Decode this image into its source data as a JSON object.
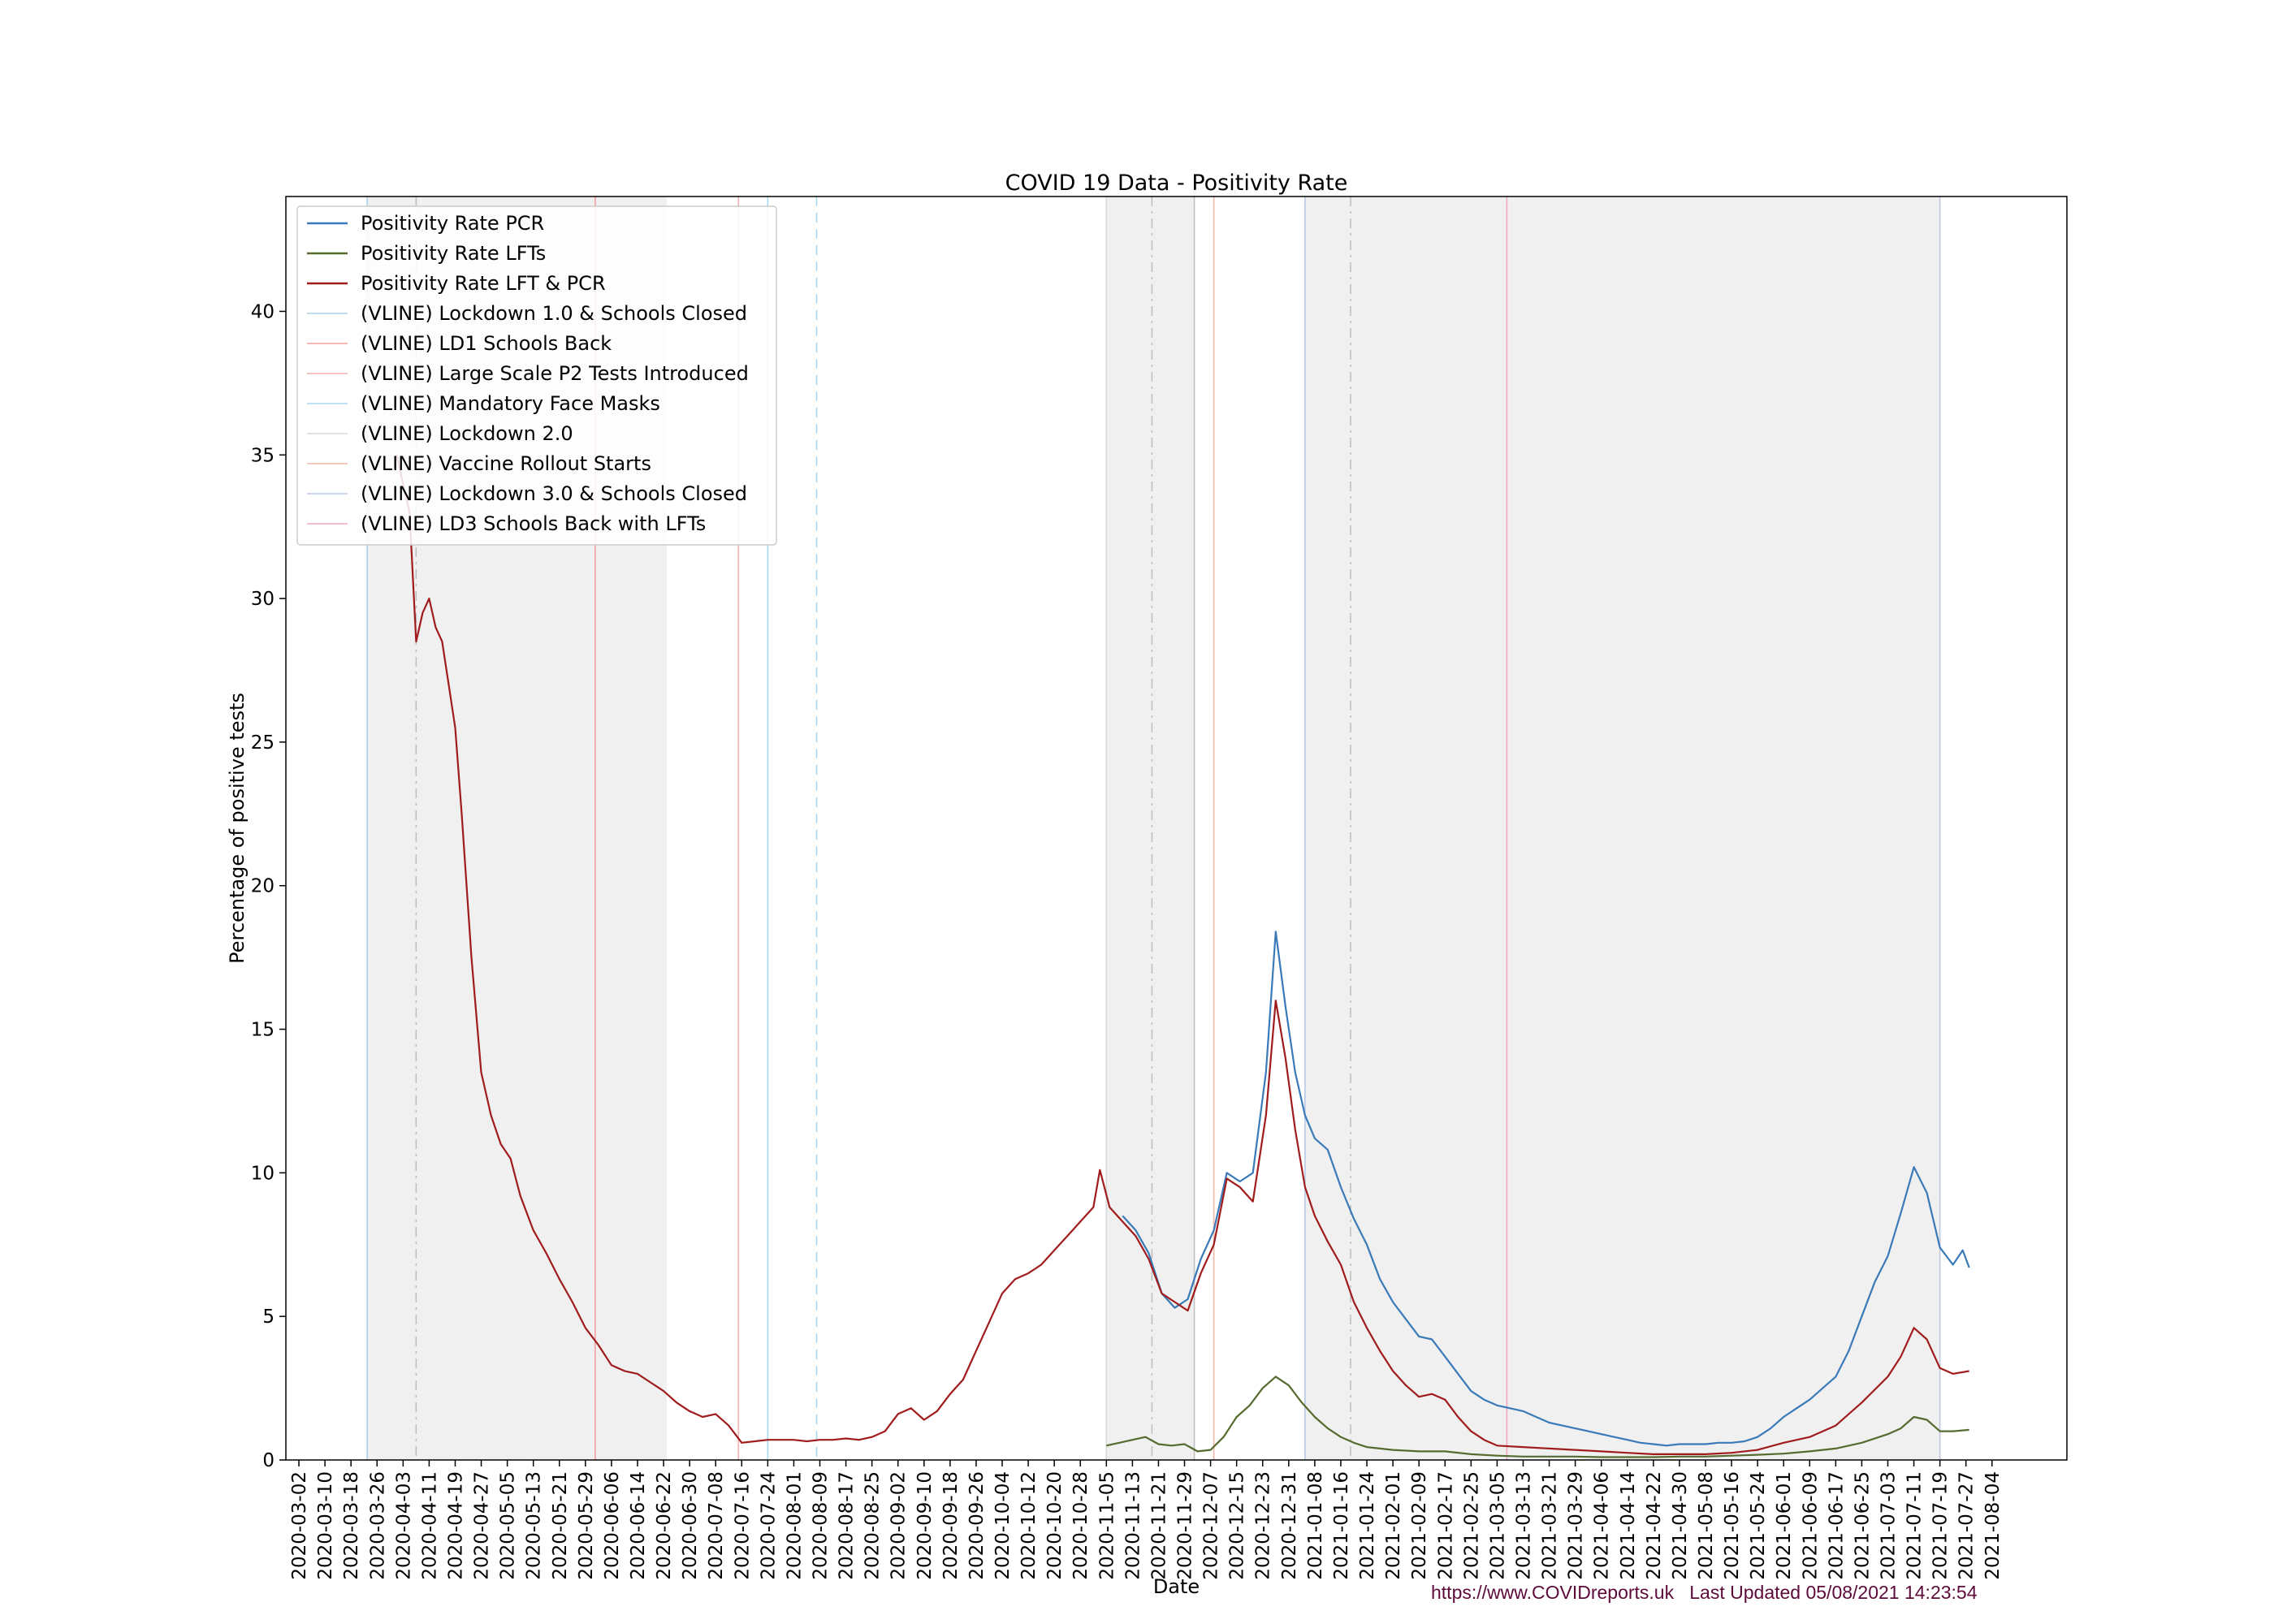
{
  "chart_data": {
    "type": "line",
    "title": "COVID 19 Data - Positivity  Rate",
    "xlabel": "Date",
    "ylabel": "Percentage of positive tests",
    "ylim": [
      0,
      44
    ],
    "xlim": [
      "2020-02-27",
      "2021-08-27"
    ],
    "yticks": [
      0,
      5,
      10,
      15,
      20,
      25,
      30,
      35,
      40
    ],
    "xticks": [
      "2020-03-02",
      "2020-03-10",
      "2020-03-18",
      "2020-03-26",
      "2020-04-03",
      "2020-04-11",
      "2020-04-19",
      "2020-04-27",
      "2020-05-05",
      "2020-05-13",
      "2020-05-21",
      "2020-05-29",
      "2020-06-06",
      "2020-06-14",
      "2020-06-22",
      "2020-06-30",
      "2020-07-08",
      "2020-07-16",
      "2020-07-24",
      "2020-08-01",
      "2020-08-09",
      "2020-08-17",
      "2020-08-25",
      "2020-09-02",
      "2020-09-10",
      "2020-09-18",
      "2020-09-26",
      "2020-10-04",
      "2020-10-12",
      "2020-10-20",
      "2020-10-28",
      "2020-11-05",
      "2020-11-13",
      "2020-11-21",
      "2020-11-29",
      "2020-12-07",
      "2020-12-15",
      "2020-12-23",
      "2020-12-31",
      "2021-01-08",
      "2021-01-16",
      "2021-01-24",
      "2021-02-01",
      "2021-02-09",
      "2021-02-17",
      "2021-02-25",
      "2021-03-05",
      "2021-03-13",
      "2021-03-21",
      "2021-03-29",
      "2021-04-06",
      "2021-04-14",
      "2021-04-22",
      "2021-04-30",
      "2021-05-08",
      "2021-05-16",
      "2021-05-24",
      "2021-06-01",
      "2021-06-09",
      "2021-06-17",
      "2021-06-25",
      "2021-07-03",
      "2021-07-11",
      "2021-07-19",
      "2021-07-27",
      "2021-08-04"
    ],
    "legend_position": "top-left",
    "grid": false,
    "shaded_periods": [
      {
        "start": "2020-03-23",
        "end": "2020-06-23"
      },
      {
        "start": "2020-11-05",
        "end": "2020-12-02"
      },
      {
        "start": "2021-01-05",
        "end": "2021-07-19"
      }
    ],
    "series": [
      {
        "name": "Positivity Rate PCR",
        "color": "#3a7ab8",
        "points": [
          [
            "2020-11-10",
            8.5
          ],
          [
            "2020-11-14",
            8.0
          ],
          [
            "2020-11-18",
            7.2
          ],
          [
            "2020-11-22",
            5.8
          ],
          [
            "2020-11-26",
            5.3
          ],
          [
            "2020-11-30",
            5.6
          ],
          [
            "2020-12-04",
            7.0
          ],
          [
            "2020-12-08",
            8.0
          ],
          [
            "2020-12-12",
            10.0
          ],
          [
            "2020-12-16",
            9.7
          ],
          [
            "2020-12-20",
            10.0
          ],
          [
            "2020-12-24",
            13.5
          ],
          [
            "2020-12-27",
            18.4
          ],
          [
            "2020-12-30",
            15.8
          ],
          [
            "2021-01-02",
            13.5
          ],
          [
            "2021-01-05",
            12.0
          ],
          [
            "2021-01-08",
            11.2
          ],
          [
            "2021-01-12",
            10.8
          ],
          [
            "2021-01-16",
            9.5
          ],
          [
            "2021-01-20",
            8.4
          ],
          [
            "2021-01-24",
            7.5
          ],
          [
            "2021-01-28",
            6.3
          ],
          [
            "2021-02-01",
            5.5
          ],
          [
            "2021-02-05",
            4.9
          ],
          [
            "2021-02-09",
            4.3
          ],
          [
            "2021-02-13",
            4.2
          ],
          [
            "2021-02-17",
            3.6
          ],
          [
            "2021-02-21",
            3.0
          ],
          [
            "2021-02-25",
            2.4
          ],
          [
            "2021-03-01",
            2.1
          ],
          [
            "2021-03-05",
            1.9
          ],
          [
            "2021-03-09",
            1.8
          ],
          [
            "2021-03-13",
            1.7
          ],
          [
            "2021-03-17",
            1.5
          ],
          [
            "2021-03-21",
            1.3
          ],
          [
            "2021-03-25",
            1.2
          ],
          [
            "2021-03-29",
            1.1
          ],
          [
            "2021-04-02",
            1.0
          ],
          [
            "2021-04-06",
            0.9
          ],
          [
            "2021-04-10",
            0.8
          ],
          [
            "2021-04-14",
            0.7
          ],
          [
            "2021-04-18",
            0.6
          ],
          [
            "2021-04-22",
            0.55
          ],
          [
            "2021-04-26",
            0.5
          ],
          [
            "2021-04-30",
            0.55
          ],
          [
            "2021-05-04",
            0.55
          ],
          [
            "2021-05-08",
            0.55
          ],
          [
            "2021-05-12",
            0.6
          ],
          [
            "2021-05-16",
            0.6
          ],
          [
            "2021-05-20",
            0.65
          ],
          [
            "2021-05-24",
            0.8
          ],
          [
            "2021-05-28",
            1.1
          ],
          [
            "2021-06-01",
            1.5
          ],
          [
            "2021-06-05",
            1.8
          ],
          [
            "2021-06-09",
            2.1
          ],
          [
            "2021-06-13",
            2.5
          ],
          [
            "2021-06-17",
            2.9
          ],
          [
            "2021-06-21",
            3.8
          ],
          [
            "2021-06-25",
            5.0
          ],
          [
            "2021-06-29",
            6.2
          ],
          [
            "2021-07-03",
            7.1
          ],
          [
            "2021-07-07",
            8.6
          ],
          [
            "2021-07-11",
            10.2
          ],
          [
            "2021-07-15",
            9.3
          ],
          [
            "2021-07-19",
            7.4
          ],
          [
            "2021-07-23",
            6.8
          ],
          [
            "2021-07-26",
            7.3
          ],
          [
            "2021-07-28",
            6.7
          ]
        ]
      },
      {
        "name": "Positivity Rate LFTs",
        "color": "#556b2f",
        "points": [
          [
            "2020-11-05",
            0.5
          ],
          [
            "2020-11-09",
            0.6
          ],
          [
            "2020-11-13",
            0.7
          ],
          [
            "2020-11-17",
            0.8
          ],
          [
            "2020-11-21",
            0.55
          ],
          [
            "2020-11-25",
            0.5
          ],
          [
            "2020-11-29",
            0.55
          ],
          [
            "2020-12-03",
            0.3
          ],
          [
            "2020-12-07",
            0.35
          ],
          [
            "2020-12-11",
            0.8
          ],
          [
            "2020-12-15",
            1.5
          ],
          [
            "2020-12-19",
            1.9
          ],
          [
            "2020-12-23",
            2.5
          ],
          [
            "2020-12-27",
            2.9
          ],
          [
            "2020-12-31",
            2.6
          ],
          [
            "2021-01-04",
            2.0
          ],
          [
            "2021-01-08",
            1.5
          ],
          [
            "2021-01-12",
            1.1
          ],
          [
            "2021-01-16",
            0.8
          ],
          [
            "2021-01-20",
            0.6
          ],
          [
            "2021-01-24",
            0.45
          ],
          [
            "2021-01-28",
            0.4
          ],
          [
            "2021-02-01",
            0.35
          ],
          [
            "2021-02-09",
            0.3
          ],
          [
            "2021-02-17",
            0.3
          ],
          [
            "2021-02-25",
            0.2
          ],
          [
            "2021-03-05",
            0.15
          ],
          [
            "2021-03-13",
            0.12
          ],
          [
            "2021-03-21",
            0.12
          ],
          [
            "2021-03-29",
            0.12
          ],
          [
            "2021-04-06",
            0.1
          ],
          [
            "2021-04-14",
            0.1
          ],
          [
            "2021-04-22",
            0.1
          ],
          [
            "2021-04-30",
            0.12
          ],
          [
            "2021-05-08",
            0.12
          ],
          [
            "2021-05-16",
            0.15
          ],
          [
            "2021-05-24",
            0.18
          ],
          [
            "2021-06-01",
            0.22
          ],
          [
            "2021-06-09",
            0.3
          ],
          [
            "2021-06-17",
            0.4
          ],
          [
            "2021-06-25",
            0.6
          ],
          [
            "2021-07-03",
            0.9
          ],
          [
            "2021-07-07",
            1.1
          ],
          [
            "2021-07-11",
            1.5
          ],
          [
            "2021-07-15",
            1.4
          ],
          [
            "2021-07-19",
            1.0
          ],
          [
            "2021-07-23",
            1.0
          ],
          [
            "2021-07-28",
            1.05
          ]
        ]
      },
      {
        "name": "Positivity Rate LFT & PCR",
        "color": "#a01c1c",
        "points": [
          [
            "2020-04-01",
            35.0
          ],
          [
            "2020-04-05",
            33.0
          ],
          [
            "2020-04-07",
            28.5
          ],
          [
            "2020-04-09",
            29.5
          ],
          [
            "2020-04-11",
            30.0
          ],
          [
            "2020-04-13",
            29.0
          ],
          [
            "2020-04-15",
            28.5
          ],
          [
            "2020-04-17",
            27.0
          ],
          [
            "2020-04-19",
            25.5
          ],
          [
            "2020-04-21",
            22.5
          ],
          [
            "2020-04-24",
            17.5
          ],
          [
            "2020-04-27",
            13.5
          ],
          [
            "2020-04-30",
            12.0
          ],
          [
            "2020-05-03",
            11.0
          ],
          [
            "2020-05-06",
            10.5
          ],
          [
            "2020-05-09",
            9.2
          ],
          [
            "2020-05-13",
            8.0
          ],
          [
            "2020-05-17",
            7.2
          ],
          [
            "2020-05-21",
            6.3
          ],
          [
            "2020-05-25",
            5.5
          ],
          [
            "2020-05-29",
            4.6
          ],
          [
            "2020-06-02",
            4.0
          ],
          [
            "2020-06-06",
            3.3
          ],
          [
            "2020-06-10",
            3.1
          ],
          [
            "2020-06-14",
            3.0
          ],
          [
            "2020-06-18",
            2.7
          ],
          [
            "2020-06-22",
            2.4
          ],
          [
            "2020-06-26",
            2.0
          ],
          [
            "2020-06-30",
            1.7
          ],
          [
            "2020-07-04",
            1.5
          ],
          [
            "2020-07-08",
            1.6
          ],
          [
            "2020-07-12",
            1.2
          ],
          [
            "2020-07-16",
            0.6
          ],
          [
            "2020-07-20",
            0.65
          ],
          [
            "2020-07-24",
            0.7
          ],
          [
            "2020-07-28",
            0.7
          ],
          [
            "2020-08-01",
            0.7
          ],
          [
            "2020-08-05",
            0.65
          ],
          [
            "2020-08-09",
            0.7
          ],
          [
            "2020-08-13",
            0.7
          ],
          [
            "2020-08-17",
            0.75
          ],
          [
            "2020-08-21",
            0.7
          ],
          [
            "2020-08-25",
            0.8
          ],
          [
            "2020-08-29",
            1.0
          ],
          [
            "2020-09-02",
            1.6
          ],
          [
            "2020-09-06",
            1.8
          ],
          [
            "2020-09-10",
            1.4
          ],
          [
            "2020-09-14",
            1.7
          ],
          [
            "2020-09-18",
            2.3
          ],
          [
            "2020-09-22",
            2.8
          ],
          [
            "2020-09-26",
            3.8
          ],
          [
            "2020-09-30",
            4.8
          ],
          [
            "2020-10-04",
            5.8
          ],
          [
            "2020-10-08",
            6.3
          ],
          [
            "2020-10-12",
            6.5
          ],
          [
            "2020-10-16",
            6.8
          ],
          [
            "2020-10-20",
            7.3
          ],
          [
            "2020-10-24",
            7.8
          ],
          [
            "2020-10-28",
            8.3
          ],
          [
            "2020-11-01",
            8.8
          ],
          [
            "2020-11-03",
            10.1
          ],
          [
            "2020-11-06",
            8.8
          ],
          [
            "2020-11-10",
            8.3
          ],
          [
            "2020-11-14",
            7.8
          ],
          [
            "2020-11-18",
            7.0
          ],
          [
            "2020-11-22",
            5.8
          ],
          [
            "2020-11-26",
            5.5
          ],
          [
            "2020-11-30",
            5.2
          ],
          [
            "2020-12-04",
            6.5
          ],
          [
            "2020-12-08",
            7.5
          ],
          [
            "2020-12-12",
            9.8
          ],
          [
            "2020-12-16",
            9.5
          ],
          [
            "2020-12-20",
            9.0
          ],
          [
            "2020-12-24",
            12.0
          ],
          [
            "2020-12-27",
            16.0
          ],
          [
            "2020-12-30",
            14.0
          ],
          [
            "2021-01-02",
            11.5
          ],
          [
            "2021-01-05",
            9.5
          ],
          [
            "2021-01-08",
            8.5
          ],
          [
            "2021-01-12",
            7.6
          ],
          [
            "2021-01-16",
            6.8
          ],
          [
            "2021-01-20",
            5.5
          ],
          [
            "2021-01-24",
            4.6
          ],
          [
            "2021-01-28",
            3.8
          ],
          [
            "2021-02-01",
            3.1
          ],
          [
            "2021-02-05",
            2.6
          ],
          [
            "2021-02-09",
            2.2
          ],
          [
            "2021-02-13",
            2.3
          ],
          [
            "2021-02-17",
            2.1
          ],
          [
            "2021-02-21",
            1.5
          ],
          [
            "2021-02-25",
            1.0
          ],
          [
            "2021-03-01",
            0.7
          ],
          [
            "2021-03-05",
            0.5
          ],
          [
            "2021-03-13",
            0.45
          ],
          [
            "2021-03-21",
            0.4
          ],
          [
            "2021-03-29",
            0.35
          ],
          [
            "2021-04-06",
            0.3
          ],
          [
            "2021-04-14",
            0.25
          ],
          [
            "2021-04-22",
            0.2
          ],
          [
            "2021-04-30",
            0.2
          ],
          [
            "2021-05-08",
            0.2
          ],
          [
            "2021-05-16",
            0.25
          ],
          [
            "2021-05-24",
            0.35
          ],
          [
            "2021-06-01",
            0.6
          ],
          [
            "2021-06-09",
            0.8
          ],
          [
            "2021-06-17",
            1.2
          ],
          [
            "2021-06-25",
            2.0
          ],
          [
            "2021-07-03",
            2.9
          ],
          [
            "2021-07-07",
            3.6
          ],
          [
            "2021-07-11",
            4.6
          ],
          [
            "2021-07-15",
            4.2
          ],
          [
            "2021-07-19",
            3.2
          ],
          [
            "2021-07-23",
            3.0
          ],
          [
            "2021-07-28",
            3.1
          ]
        ]
      }
    ],
    "vlines": [
      {
        "label": "(VLINE) Lockdown 1.0 & Schools Closed",
        "color": "#a8d0e8",
        "style": "solid",
        "date": "2020-03-23"
      },
      {
        "label": "(VLINE) LD1 Schools Back",
        "color": "#f0a0a0",
        "style": "solid",
        "date": "2020-06-01"
      },
      {
        "label": "(VLINE) Large Scale P2 Tests Introduced",
        "color": "#f4b0b0",
        "style": "solid",
        "date": "2020-07-15"
      },
      {
        "label": "(VLINE) Mandatory Face Masks",
        "color": "#a8d8f0",
        "style": "solid",
        "date": "2020-07-24"
      },
      {
        "label": "(VLINE) Lockdown 2.0",
        "color": "#d8d8d8",
        "style": "solid",
        "date": "2020-11-05"
      },
      {
        "label": "(VLINE) Vaccine Rollout Starts",
        "color": "#f0b8a8",
        "style": "solid",
        "date": "2020-12-08"
      },
      {
        "label": "(VLINE) Lockdown 3.0 & Schools Closed",
        "color": "#b8c8e8",
        "style": "solid",
        "date": "2021-01-05"
      },
      {
        "label": "(VLINE) LD3 Schools Back with LFTs",
        "color": "#f0a8b8",
        "style": "solid",
        "date": "2021-03-08"
      }
    ],
    "extra_vlines": [
      {
        "date": "2020-04-07",
        "color": "#c0c0c0",
        "style": "dashdot"
      },
      {
        "date": "2020-08-08",
        "color": "#a8d8f0",
        "style": "dashed"
      },
      {
        "date": "2020-11-19",
        "color": "#c0c0c0",
        "style": "dashdot"
      },
      {
        "date": "2020-12-02",
        "color": "#c0c0c0",
        "style": "solid"
      },
      {
        "date": "2021-01-19",
        "color": "#c0c0c0",
        "style": "dashdot"
      },
      {
        "date": "2021-07-19",
        "color": "#c0c8e0",
        "style": "solid"
      }
    ]
  },
  "footer": {
    "url": "https://www.COVIDreports.uk",
    "updated": "Last Updated 05/08/2021 14:23:54"
  }
}
